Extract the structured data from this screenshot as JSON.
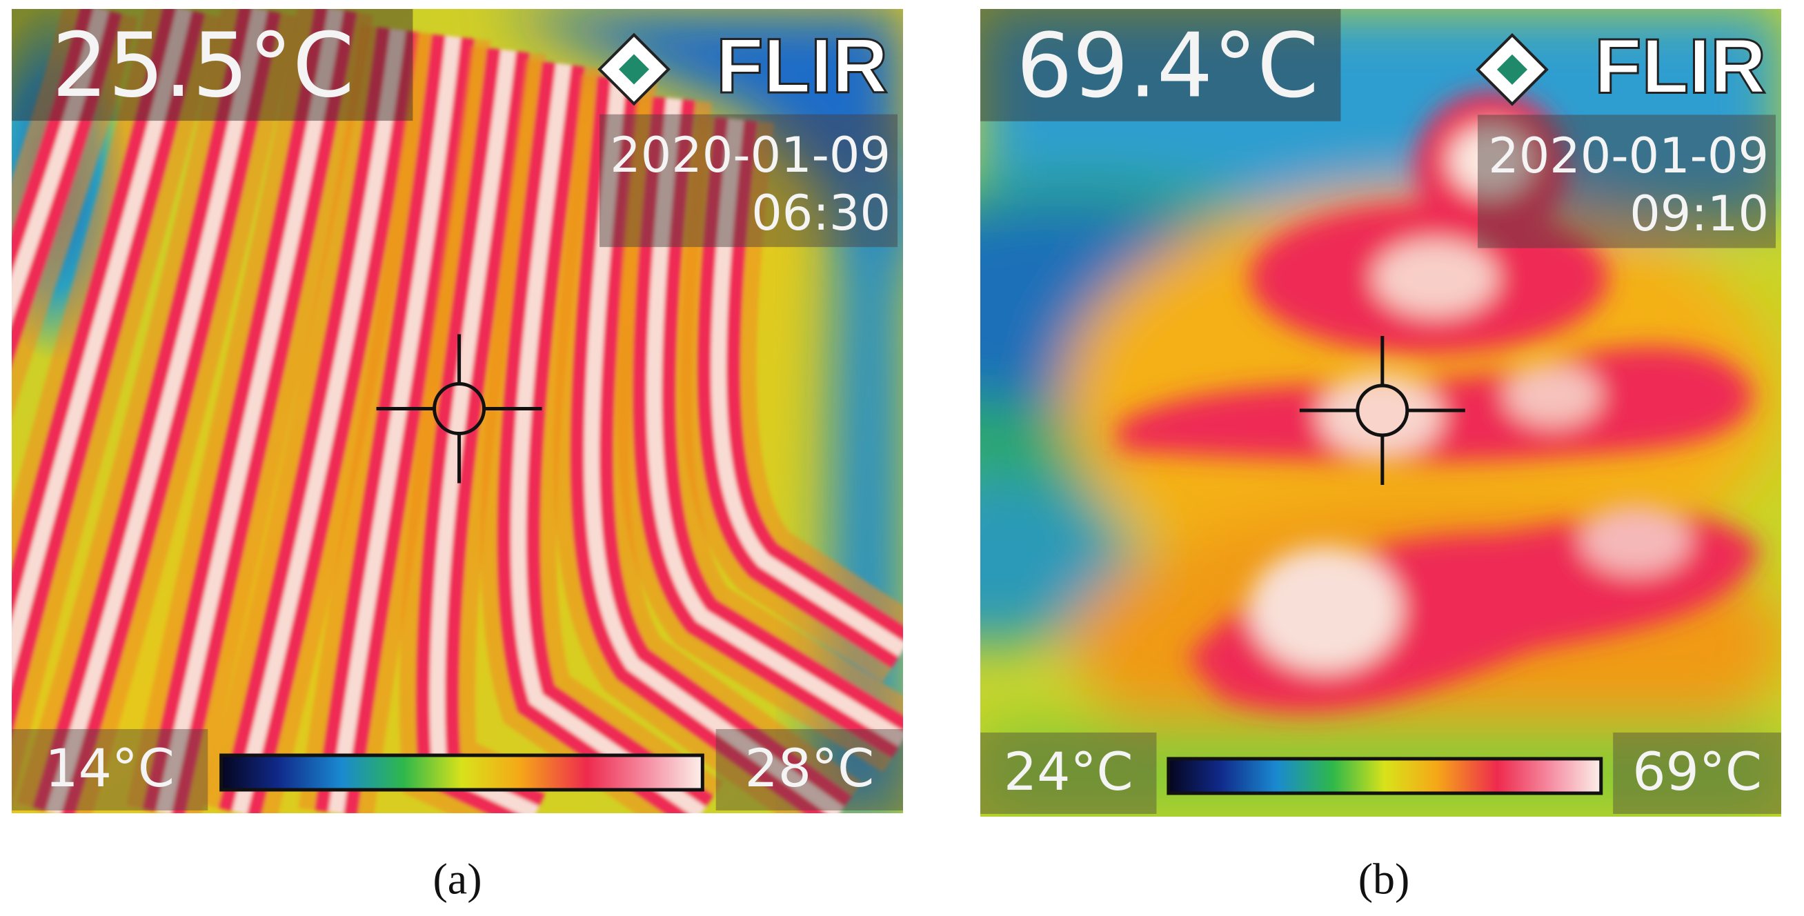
{
  "panels": [
    {
      "temperature": "25.5°C",
      "brand": "FLIR",
      "date": "2020-01-09",
      "time": "06:30",
      "scale_min": "14°C",
      "scale_max": "28°C",
      "caption": "(a)"
    },
    {
      "temperature": "69.4°C",
      "brand": "FLIR",
      "date": "2020-01-09",
      "time": "09:10",
      "scale_min": "24°C",
      "scale_max": "69°C",
      "caption": "(b)"
    }
  ]
}
